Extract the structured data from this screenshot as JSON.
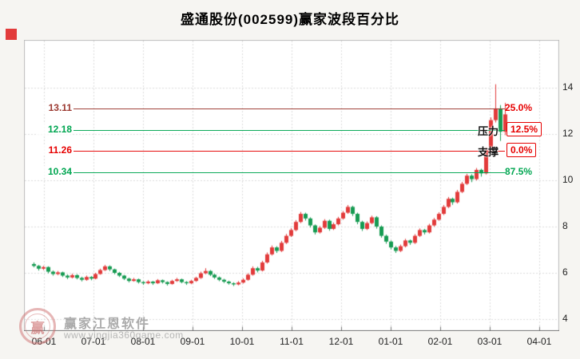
{
  "title": "盛通股份(002599)赢家波段百分比",
  "marker_color": "#e23b3b",
  "levels": [
    {
      "price": "13.11",
      "value": 13.11,
      "pct": "25.0%",
      "line_color": "#9c3a32",
      "label_color": "#9c3a32",
      "pct_color": "#e60000",
      "boxed": false,
      "tag": ""
    },
    {
      "price": "12.18",
      "value": 12.18,
      "pct": "12.5%",
      "line_color": "#00a651",
      "label_color": "#00a651",
      "pct_color": "#e60000",
      "boxed": true,
      "tag": "压力"
    },
    {
      "price": "11.26",
      "value": 11.26,
      "pct": "0.0%",
      "line_color": "#e60000",
      "label_color": "#e60000",
      "pct_color": "#e60000",
      "boxed": true,
      "tag": "支撑"
    },
    {
      "price": "10.34",
      "value": 10.34,
      "pct": "87.5%",
      "line_color": "#00a651",
      "label_color": "#00a651",
      "pct_color": "#00a651",
      "boxed": false,
      "tag": ""
    }
  ],
  "axes": {
    "y": [
      "14",
      "12",
      "10",
      "8",
      "6",
      "4"
    ],
    "x": [
      "06-01",
      "07-01",
      "08-01",
      "09-01",
      "10-01",
      "11-01",
      "12-01",
      "01-01",
      "02-01",
      "03-01",
      "04-01"
    ]
  },
  "watermark": {
    "brand": "赢家江恩软件",
    "url": "www.yingjia360game.com",
    "logo_char": "赢"
  },
  "chart_data": {
    "type": "candlestick",
    "title": "盛通股份(002599)赢家波段百分比",
    "x_tick_labels": [
      "06-01",
      "07-01",
      "08-01",
      "09-01",
      "10-01",
      "11-01",
      "12-01",
      "01-01",
      "02-01",
      "03-01",
      "04-01"
    ],
    "y_ticks": [
      14,
      12,
      10,
      8,
      6,
      4
    ],
    "ylim": [
      3.4,
      16.1
    ],
    "grid": true,
    "up_color": "#e23b3b",
    "down_color": "#169b52",
    "band_levels": [
      {
        "price": 13.11,
        "percent": "25.0%"
      },
      {
        "price": 12.18,
        "percent": "12.5%",
        "tag": "压力"
      },
      {
        "price": 11.26,
        "percent": "0.0%",
        "tag": "支撑"
      },
      {
        "price": 10.34,
        "percent": "87.5%"
      }
    ],
    "candles_ohlc": [
      [
        6.38,
        6.45,
        6.24,
        6.3
      ],
      [
        6.3,
        6.34,
        6.1,
        6.18
      ],
      [
        6.18,
        6.3,
        6.12,
        6.25
      ],
      [
        6.25,
        6.28,
        5.98,
        6.05
      ],
      [
        6.05,
        6.1,
        5.88,
        5.95
      ],
      [
        5.95,
        6.08,
        5.9,
        6.02
      ],
      [
        6.02,
        6.05,
        5.82,
        5.88
      ],
      [
        5.88,
        5.93,
        5.73,
        5.8
      ],
      [
        5.8,
        5.96,
        5.76,
        5.9
      ],
      [
        5.9,
        5.94,
        5.72,
        5.78
      ],
      [
        5.78,
        5.83,
        5.63,
        5.7
      ],
      [
        5.7,
        5.88,
        5.66,
        5.82
      ],
      [
        5.82,
        5.86,
        5.68,
        5.75
      ],
      [
        5.75,
        6.0,
        5.72,
        5.95
      ],
      [
        5.95,
        6.18,
        5.92,
        6.12
      ],
      [
        6.12,
        6.34,
        6.08,
        6.28
      ],
      [
        6.28,
        6.32,
        6.08,
        6.15
      ],
      [
        6.15,
        6.18,
        5.94,
        6.0
      ],
      [
        6.0,
        6.04,
        5.82,
        5.88
      ],
      [
        5.88,
        5.91,
        5.69,
        5.75
      ],
      [
        5.75,
        5.79,
        5.59,
        5.65
      ],
      [
        5.65,
        5.78,
        5.62,
        5.72
      ],
      [
        5.72,
        5.75,
        5.54,
        5.6
      ],
      [
        5.6,
        5.64,
        5.48,
        5.55
      ],
      [
        5.55,
        5.68,
        5.51,
        5.62
      ],
      [
        5.62,
        5.65,
        5.48,
        5.55
      ],
      [
        5.55,
        5.73,
        5.52,
        5.68
      ],
      [
        5.68,
        5.71,
        5.54,
        5.6
      ],
      [
        5.6,
        5.63,
        5.45,
        5.52
      ],
      [
        5.52,
        5.7,
        5.49,
        5.65
      ],
      [
        5.65,
        5.78,
        5.61,
        5.72
      ],
      [
        5.72,
        5.75,
        5.55,
        5.6
      ],
      [
        5.6,
        5.64,
        5.48,
        5.55
      ],
      [
        5.55,
        5.7,
        5.51,
        5.65
      ],
      [
        5.65,
        5.83,
        5.61,
        5.78
      ],
      [
        5.78,
        6.05,
        5.74,
        5.98
      ],
      [
        5.98,
        6.2,
        5.94,
        6.08
      ],
      [
        6.08,
        6.12,
        5.86,
        5.92
      ],
      [
        5.92,
        5.96,
        5.74,
        5.8
      ],
      [
        5.8,
        5.84,
        5.64,
        5.7
      ],
      [
        5.7,
        5.74,
        5.56,
        5.62
      ],
      [
        5.62,
        5.66,
        5.49,
        5.55
      ],
      [
        5.55,
        5.59,
        5.43,
        5.5
      ],
      [
        5.5,
        5.64,
        5.46,
        5.58
      ],
      [
        5.58,
        5.76,
        5.54,
        5.7
      ],
      [
        5.7,
        5.98,
        5.66,
        5.92
      ],
      [
        5.92,
        6.28,
        5.88,
        6.2
      ],
      [
        6.2,
        6.26,
        6.02,
        6.1
      ],
      [
        6.1,
        6.52,
        6.06,
        6.45
      ],
      [
        6.45,
        6.88,
        6.4,
        6.8
      ],
      [
        6.8,
        7.18,
        6.75,
        7.1
      ],
      [
        7.1,
        7.15,
        6.86,
        6.95
      ],
      [
        6.95,
        7.38,
        6.9,
        7.3
      ],
      [
        7.3,
        7.68,
        7.25,
        7.6
      ],
      [
        7.6,
        7.93,
        7.55,
        7.85
      ],
      [
        7.85,
        8.28,
        7.8,
        8.2
      ],
      [
        8.2,
        8.63,
        8.15,
        8.55
      ],
      [
        8.55,
        8.6,
        8.26,
        8.35
      ],
      [
        8.35,
        8.4,
        7.96,
        8.05
      ],
      [
        8.05,
        8.09,
        7.66,
        7.75
      ],
      [
        7.75,
        8.02,
        7.7,
        7.95
      ],
      [
        7.95,
        8.32,
        7.9,
        8.25
      ],
      [
        8.25,
        8.3,
        7.82,
        7.9
      ],
      [
        7.9,
        8.17,
        7.85,
        8.1
      ],
      [
        8.1,
        8.42,
        8.05,
        8.35
      ],
      [
        8.35,
        8.67,
        8.3,
        8.6
      ],
      [
        8.6,
        8.93,
        8.55,
        8.85
      ],
      [
        8.85,
        8.9,
        8.46,
        8.55
      ],
      [
        8.55,
        8.6,
        8.1,
        8.2
      ],
      [
        8.2,
        8.25,
        7.81,
        7.9
      ],
      [
        7.9,
        8.22,
        7.85,
        8.15
      ],
      [
        8.15,
        8.47,
        8.1,
        8.4
      ],
      [
        8.4,
        8.45,
        7.91,
        8.0
      ],
      [
        8.0,
        8.05,
        7.52,
        7.6
      ],
      [
        7.6,
        7.65,
        7.26,
        7.35
      ],
      [
        7.35,
        7.4,
        7.01,
        7.1
      ],
      [
        7.1,
        7.16,
        6.86,
        6.95
      ],
      [
        6.95,
        7.22,
        6.9,
        7.15
      ],
      [
        7.15,
        7.47,
        7.1,
        7.4
      ],
      [
        7.4,
        7.44,
        7.21,
        7.3
      ],
      [
        7.3,
        7.67,
        7.25,
        7.6
      ],
      [
        7.6,
        7.92,
        7.55,
        7.85
      ],
      [
        7.85,
        7.9,
        7.66,
        7.75
      ],
      [
        7.75,
        8.12,
        7.7,
        8.05
      ],
      [
        8.05,
        8.37,
        8.0,
        8.3
      ],
      [
        8.3,
        8.62,
        8.25,
        8.55
      ],
      [
        8.55,
        8.93,
        8.5,
        8.85
      ],
      [
        8.85,
        9.28,
        8.8,
        9.2
      ],
      [
        9.2,
        9.25,
        8.94,
        9.05
      ],
      [
        9.05,
        9.58,
        9.0,
        9.5
      ],
      [
        9.5,
        9.93,
        9.45,
        9.85
      ],
      [
        9.85,
        10.28,
        9.8,
        10.2
      ],
      [
        10.2,
        10.26,
        9.92,
        10.05
      ],
      [
        10.05,
        10.53,
        10.0,
        10.45
      ],
      [
        10.45,
        10.5,
        10.16,
        10.3
      ],
      [
        10.3,
        11.42,
        10.25,
        11.3
      ],
      [
        11.3,
        12.72,
        11.22,
        12.6
      ],
      [
        12.6,
        14.15,
        12.5,
        13.1
      ],
      [
        13.1,
        13.25,
        11.7,
        12.1
      ],
      [
        12.1,
        13.35,
        11.95,
        12.85
      ]
    ]
  }
}
